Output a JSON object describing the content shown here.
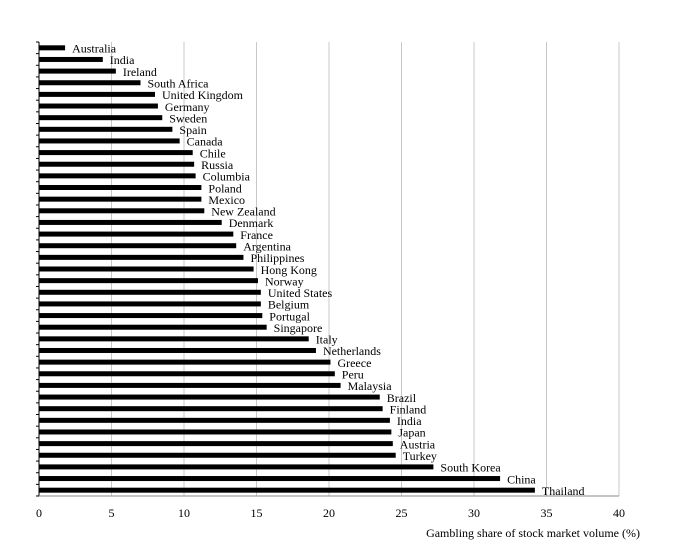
{
  "chart_data": {
    "type": "bar",
    "orientation": "horizontal",
    "xlabel": "Gambling share of stock market volume (%)",
    "ylabel": "",
    "xlim": [
      0,
      40
    ],
    "xticks": [
      "0",
      "5",
      "10",
      "15",
      "20",
      "25",
      "30",
      "35",
      "40"
    ],
    "grid": "vertical",
    "bar_color": "#000000",
    "categories": [
      "Australia",
      "India",
      "Ireland",
      "South Africa",
      "United Kingdom",
      "Germany",
      "Sweden",
      "Spain",
      "Canada",
      "Chile",
      "Russia",
      "Columbia",
      "Poland",
      "Mexico",
      "New Zealand",
      "Denmark",
      "France",
      "Argentina",
      "Philippines",
      "Hong Kong",
      "Norway",
      "United States",
      "Belgium",
      "Portugal",
      "Singapore",
      "Italy",
      "Netherlands",
      "Greece",
      "Peru",
      "Malaysia",
      "Brazil",
      "Finland",
      "India",
      "Japan",
      "Austria",
      "Turkey",
      "South Korea",
      "China",
      "Thailand"
    ],
    "values": [
      1.8,
      4.4,
      5.3,
      7.0,
      8.0,
      8.2,
      8.5,
      9.2,
      9.7,
      10.6,
      10.7,
      10.8,
      11.2,
      11.2,
      11.4,
      12.6,
      13.4,
      13.6,
      14.1,
      14.8,
      15.1,
      15.3,
      15.3,
      15.4,
      15.7,
      18.6,
      19.1,
      20.1,
      20.4,
      20.8,
      23.5,
      23.7,
      24.2,
      24.3,
      24.4,
      24.6,
      27.2,
      31.8,
      34.2
    ]
  }
}
